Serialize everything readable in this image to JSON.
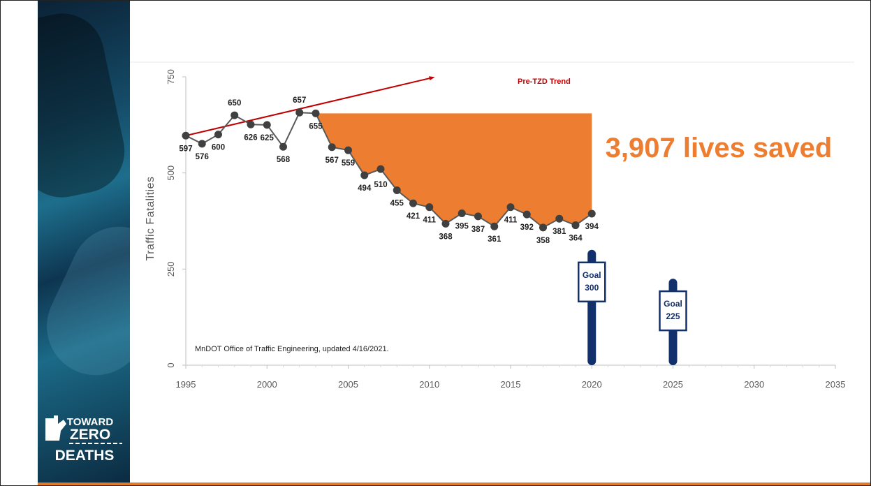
{
  "logo": {
    "line1": "TOWARD",
    "line2": "ZERO",
    "line3": "DEATHS"
  },
  "annotations": {
    "lives_saved": "3,907 lives saved",
    "trend_label": "Pre-TZD Trend",
    "source": "MnDOT Office of Traffic Engineering, updated 4/16/2021."
  },
  "goals": [
    {
      "year": 2020,
      "value": 300,
      "label1": "Goal",
      "label2": "300"
    },
    {
      "year": 2025,
      "value": 225,
      "label1": "Goal",
      "label2": "225"
    }
  ],
  "colors": {
    "accent": "#ed7d31",
    "trend": "#c00000",
    "line": "#595959",
    "goal": "#12306b",
    "sidebar": "#144a66"
  },
  "chart_data": {
    "type": "line",
    "title": "",
    "xlabel": "",
    "ylabel": "Traffic Fatalities",
    "xlim": [
      1995,
      2035
    ],
    "ylim": [
      0,
      750
    ],
    "xticks": [
      1995,
      2000,
      2005,
      2010,
      2015,
      2020,
      2025,
      2030,
      2035
    ],
    "yticks": [
      0,
      250,
      500,
      750
    ],
    "grid": false,
    "series": [
      {
        "x": [
          1995,
          1996,
          1997,
          1998,
          1999,
          2000,
          2001,
          2002,
          2003,
          2004,
          2005,
          2006,
          2007,
          2008,
          2009,
          2010,
          2011,
          2012,
          2013,
          2014,
          2015,
          2016,
          2017,
          2018,
          2019,
          2020
        ],
        "values": [
          597,
          576,
          600,
          650,
          626,
          625,
          568,
          657,
          655,
          567,
          559,
          494,
          510,
          455,
          421,
          411,
          368,
          395,
          387,
          361,
          411,
          392,
          358,
          381,
          364,
          394
        ]
      }
    ],
    "trend": {
      "x": [
        1995,
        2010
      ],
      "values": [
        597,
        746
      ]
    },
    "saved_area": {
      "baseline_value": 655,
      "from_year": 2003,
      "to_year": 2020
    }
  }
}
